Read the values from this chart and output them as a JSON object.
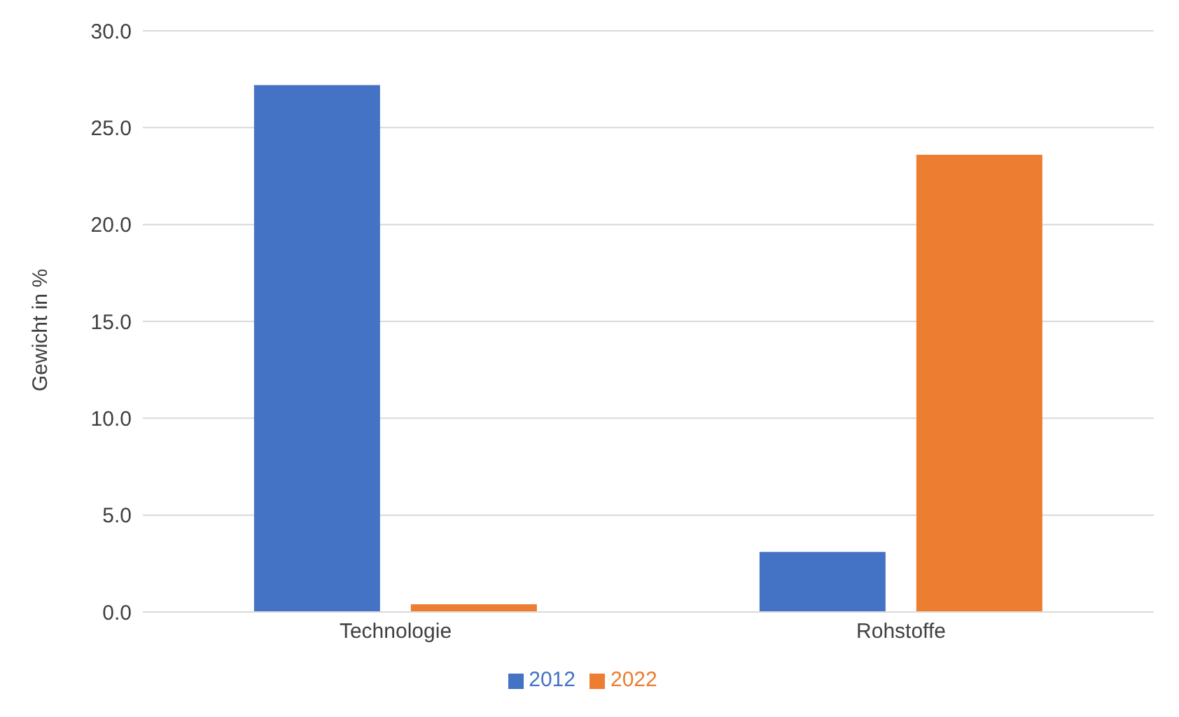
{
  "chart_data": {
    "type": "bar",
    "ylabel": "Gewicht in %",
    "categories": [
      "Technologie",
      "Rohstoffe"
    ],
    "series": [
      {
        "name": "2012",
        "color": "#4472c4",
        "values": [
          27.2,
          3.1
        ]
      },
      {
        "name": "2022",
        "color": "#ed7d31",
        "values": [
          0.4,
          23.6
        ]
      }
    ],
    "ylim": [
      0,
      30
    ],
    "yticks": [
      {
        "value": 0,
        "label": "0.0"
      },
      {
        "value": 5,
        "label": "5.0"
      },
      {
        "value": 10,
        "label": "10.0"
      },
      {
        "value": 15,
        "label": "15.0"
      },
      {
        "value": 20,
        "label": "20.0"
      },
      {
        "value": 25,
        "label": "25.0"
      },
      {
        "value": 30,
        "label": "30.0"
      }
    ],
    "grid": "y",
    "legend": "bottom"
  }
}
